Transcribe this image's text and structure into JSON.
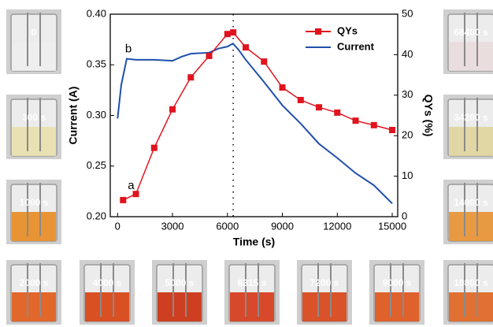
{
  "chart_data": {
    "type": "line",
    "x_label": "Time (s)",
    "y_label": "Current (A)",
    "y2_label": "QYs (%)",
    "xlim": [
      -400,
      15300
    ],
    "xticks": [
      0,
      3000,
      6000,
      9000,
      12000,
      15000
    ],
    "ylim": [
      0.2,
      0.4
    ],
    "yticks": [
      {
        "value": 0.2,
        "label": "0.20"
      },
      0.25,
      {
        "value": 0.3,
        "label": "0.30"
      },
      0.35,
      {
        "value": 0.4,
        "label": "0.40"
      }
    ],
    "y2lim": [
      0,
      50
    ],
    "y2ticks": [
      0,
      10,
      20,
      30,
      40,
      50
    ],
    "legend": "upper right",
    "vline": 6315,
    "annotations": [
      "a",
      "b"
    ],
    "series": [
      {
        "name": "QYs",
        "color": "#e0141e",
        "axis": "y2",
        "marker": "square",
        "x": [
          300,
          1000,
          2000,
          3000,
          4000,
          5000,
          6000,
          6315,
          7000,
          8000,
          9000,
          10000,
          11000,
          12000,
          13000,
          14000,
          15000
        ],
        "values": [
          4.1,
          5.6,
          17,
          26.5,
          34.4,
          39.7,
          45.1,
          45.5,
          41.8,
          38.3,
          31.9,
          28.8,
          27,
          25.7,
          23.7,
          22.6,
          21.4
        ]
      },
      {
        "name": "Current",
        "color": "#1f4faa",
        "axis": "y",
        "x": [
          0,
          200,
          500,
          1000,
          2000,
          3000,
          3500,
          4000,
          5000,
          5500,
          6000,
          6300,
          6600,
          7000,
          8000,
          9000,
          10000,
          11000,
          12000,
          13000,
          14000,
          15000
        ],
        "values": [
          0.297,
          0.33,
          0.356,
          0.355,
          0.355,
          0.354,
          0.358,
          0.361,
          0.362,
          0.366,
          0.368,
          0.371,
          0.365,
          0.355,
          0.333,
          0.31,
          0.292,
          0.272,
          0.258,
          0.243,
          0.231,
          0.213
        ]
      }
    ]
  },
  "photos": [
    {
      "label": "0",
      "color": "#eeeeee"
    },
    {
      "label": "300 s",
      "color": "#e9e0b0"
    },
    {
      "label": "1000 s",
      "color": "#e88f2a"
    },
    {
      "label": "68400 s",
      "color": "#eadcdc"
    },
    {
      "label": "34200 s",
      "color": "#e0d6a0"
    },
    {
      "label": "14000 s",
      "color": "#e8963a"
    },
    {
      "label": "2000 s",
      "color": "#e06020"
    },
    {
      "label": "4000 s",
      "color": "#d84818"
    },
    {
      "label": "5000 s",
      "color": "#cc3616"
    },
    {
      "label": "6315 s",
      "color": "#d64020"
    },
    {
      "label": "7200 s",
      "color": "#d84a20"
    },
    {
      "label": "9000 s",
      "color": "#de5a22"
    },
    {
      "label": "10800 s",
      "color": "#e06a28"
    }
  ]
}
